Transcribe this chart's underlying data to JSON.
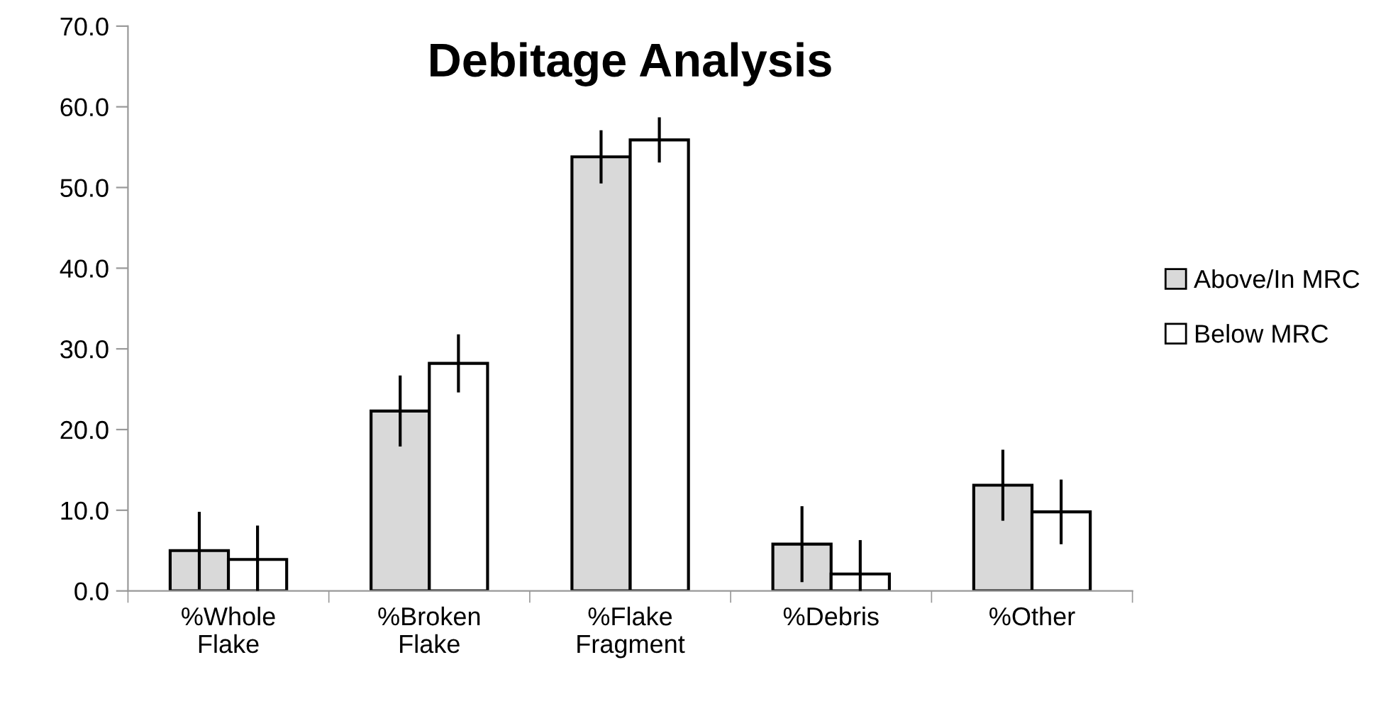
{
  "chart_data": {
    "type": "bar",
    "title": "Debitage Analysis",
    "categories": [
      "%Whole\nFlake",
      "%Broken\nFlake",
      "%Flake\nFragment",
      "%Debris",
      "%Other"
    ],
    "series": [
      {
        "name": "Above/In MRC",
        "color": "#d9d9d9",
        "values": [
          5.0,
          22.3,
          53.8,
          5.8,
          13.1
        ],
        "errors": [
          4.8,
          4.4,
          3.3,
          4.7,
          4.4
        ]
      },
      {
        "name": "Below MRC",
        "color": "#ffffff",
        "values": [
          3.9,
          28.2,
          55.9,
          2.1,
          9.8
        ],
        "errors": [
          [
            0,
            8.1
          ],
          3.6,
          2.8,
          [
            0,
            6.3
          ],
          4.0
        ]
      }
    ],
    "ylim": [
      0,
      70
    ],
    "yticks": [
      {
        "value": 0,
        "label": "0.0"
      },
      {
        "value": 10,
        "label": "10.0"
      },
      {
        "value": 20,
        "label": "20.0"
      },
      {
        "value": 30,
        "label": "30.0"
      },
      {
        "value": 40,
        "label": "40.0"
      },
      {
        "value": 50,
        "label": "50.0"
      },
      {
        "value": 60,
        "label": "60.0"
      },
      {
        "value": 70,
        "label": "70.0"
      }
    ],
    "grid": false,
    "legend": "right"
  }
}
